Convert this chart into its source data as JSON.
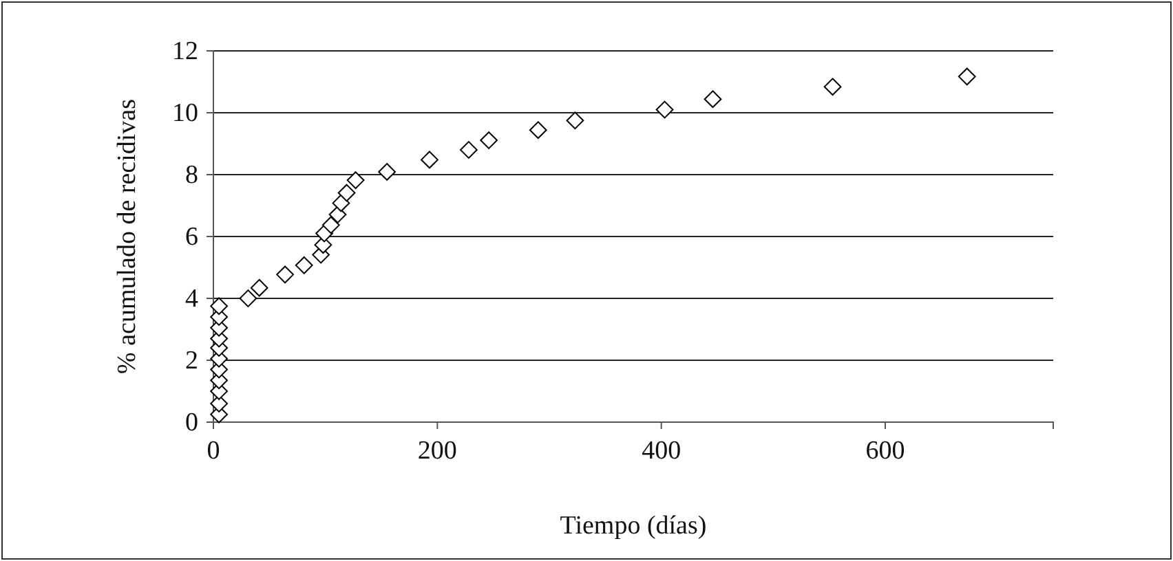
{
  "chart_data": {
    "type": "scatter",
    "xlabel": "Tiempo (días)",
    "ylabel": "% acumulado de recidivas",
    "marker": "diamond",
    "grid": "y",
    "xlim": [
      0,
      750
    ],
    "xticks": [
      0,
      200,
      400,
      600
    ],
    "ylim": [
      0,
      12
    ],
    "yticks": [
      0,
      2,
      4,
      6,
      8,
      10,
      12
    ],
    "series": [
      {
        "color": "#000000",
        "x": [
          5,
          5,
          5,
          5,
          5,
          5,
          5,
          5,
          5,
          5,
          5,
          31,
          41,
          64,
          81,
          96,
          98,
          99,
          105,
          111,
          114,
          119,
          127,
          155,
          193,
          228,
          246,
          290,
          323,
          403,
          446,
          553,
          673
        ],
        "values": [
          0.25,
          0.6,
          1.0,
          1.35,
          1.7,
          2.05,
          2.4,
          2.7,
          3.05,
          3.4,
          3.75,
          4.0,
          4.34,
          4.77,
          5.07,
          5.41,
          5.73,
          6.1,
          6.37,
          6.71,
          7.08,
          7.41,
          7.82,
          8.09,
          8.48,
          8.8,
          9.11,
          9.44,
          9.75,
          10.1,
          10.44,
          10.84,
          11.17
        ]
      }
    ]
  }
}
